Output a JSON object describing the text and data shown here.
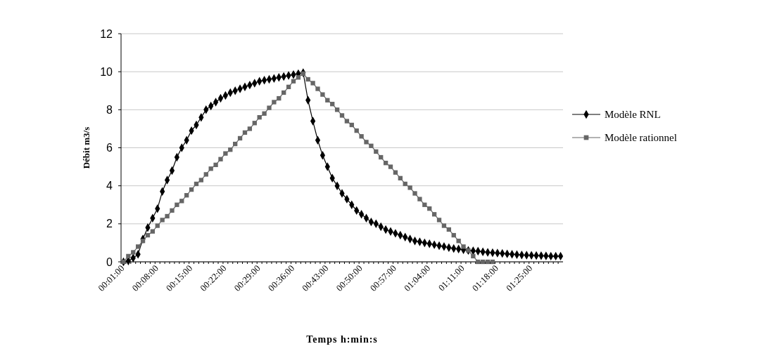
{
  "chart_data": {
    "type": "line",
    "xlabel": "Temps h:min:s",
    "ylabel": "Débit m3/s",
    "categories": [
      "00:01:00",
      null,
      null,
      null,
      null,
      null,
      null,
      "00:08:00",
      null,
      null,
      null,
      null,
      null,
      null,
      "00:15:00",
      null,
      null,
      null,
      null,
      null,
      null,
      "00:22:00",
      null,
      null,
      null,
      null,
      null,
      null,
      "00:29:00",
      null,
      null,
      null,
      null,
      null,
      null,
      "00:36:00",
      null,
      null,
      null,
      null,
      null,
      null,
      "00:43:00",
      null,
      null,
      null,
      null,
      null,
      null,
      "00:50:00",
      null,
      null,
      null,
      null,
      null,
      null,
      "00:57:00",
      null,
      null,
      null,
      null,
      null,
      null,
      "01:04:00",
      null,
      null,
      null,
      null,
      null,
      null,
      "01:11:00",
      null,
      null,
      null,
      null,
      null,
      null,
      "01:18:00",
      null,
      null,
      null,
      null,
      null,
      null,
      "01:25:00",
      null,
      null,
      null,
      null,
      null,
      null
    ],
    "series": [
      {
        "name": "Modèle RNL",
        "color": "#000000",
        "marker": "diamond",
        "values": [
          0,
          0.05,
          0.2,
          0.4,
          1.2,
          1.8,
          2.3,
          2.8,
          3.7,
          4.3,
          4.8,
          5.5,
          6.0,
          6.4,
          6.9,
          7.2,
          7.6,
          8.0,
          8.2,
          8.4,
          8.6,
          8.75,
          8.9,
          9.0,
          9.1,
          9.2,
          9.3,
          9.4,
          9.5,
          9.55,
          9.6,
          9.65,
          9.7,
          9.75,
          9.8,
          9.85,
          9.9,
          9.95,
          8.5,
          7.4,
          6.4,
          5.6,
          5.0,
          4.4,
          4.0,
          3.6,
          3.3,
          3.0,
          2.7,
          2.5,
          2.3,
          2.1,
          2.0,
          1.85,
          1.7,
          1.6,
          1.5,
          1.4,
          1.3,
          1.2,
          1.1,
          1.05,
          1.0,
          0.95,
          0.9,
          0.85,
          0.8,
          0.75,
          0.7,
          0.67,
          0.64,
          0.6,
          0.58,
          0.56,
          0.53,
          0.5,
          0.48,
          0.46,
          0.44,
          0.42,
          0.4,
          0.38,
          0.36,
          0.35,
          0.34,
          0.33,
          0.32,
          0.31,
          0.3,
          0.3,
          0.3
        ]
      },
      {
        "name": "Modèle rationnel",
        "color": "#666666",
        "marker": "square",
        "values": [
          0,
          0.3,
          0.5,
          0.8,
          1.1,
          1.4,
          1.6,
          1.9,
          2.2,
          2.4,
          2.7,
          3.0,
          3.2,
          3.5,
          3.8,
          4.1,
          4.3,
          4.6,
          4.9,
          5.1,
          5.4,
          5.7,
          5.9,
          6.2,
          6.5,
          6.8,
          7.0,
          7.3,
          7.6,
          7.8,
          8.1,
          8.4,
          8.6,
          8.9,
          9.2,
          9.5,
          9.7,
          9.9,
          9.6,
          9.4,
          9.1,
          8.8,
          8.5,
          8.3,
          8.0,
          7.7,
          7.4,
          7.2,
          6.9,
          6.6,
          6.3,
          6.1,
          5.8,
          5.5,
          5.2,
          5.0,
          4.7,
          4.4,
          4.1,
          3.9,
          3.6,
          3.3,
          3.0,
          2.8,
          2.5,
          2.2,
          1.9,
          1.7,
          1.4,
          1.1,
          0.8,
          0.6,
          0.3,
          0,
          0,
          0,
          0,
          null,
          null,
          null,
          null,
          null,
          null,
          null,
          null,
          null,
          null,
          null,
          null,
          null,
          null
        ]
      }
    ],
    "ylim": [
      0,
      12
    ],
    "yticks": [
      0,
      2,
      4,
      6,
      8,
      10,
      12
    ],
    "grid": "y",
    "legend": "right",
    "line_style": "solid"
  }
}
